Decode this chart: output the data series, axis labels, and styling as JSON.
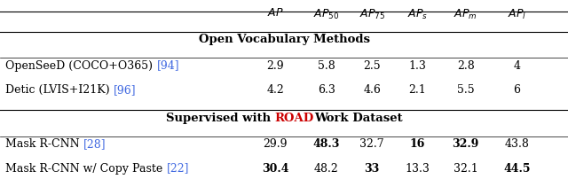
{
  "columns": [
    "AP",
    "AP50",
    "AP75",
    "AP_s",
    "AP_m",
    "AP_l"
  ],
  "col_labels": [
    "$AP$",
    "$AP_{50}$",
    "$AP_{75}$",
    "$AP_s$",
    "$AP_m$",
    "$AP_l$"
  ],
  "section1_title": "Open Vocabulary Methods",
  "section2_title": "Supervised with ROADWork Dataset",
  "rows": [
    {
      "name": "OpenSeeD (COCO+O365) [94]",
      "name_parts": [
        {
          "text": "OpenSeeD (COCO+O365) ",
          "color": "#000000",
          "bold": false
        },
        {
          "text": "[94]",
          "color": "#4169E1",
          "bold": false
        }
      ],
      "values": [
        "2.9",
        "5.8",
        "2.5",
        "1.3",
        "2.8",
        "4"
      ],
      "bold": [
        false,
        false,
        false,
        false,
        false,
        false
      ]
    },
    {
      "name": "Detic (LVIS+I21K) [96]",
      "name_parts": [
        {
          "text": "Detic (LVIS+I21K) ",
          "color": "#000000",
          "bold": false
        },
        {
          "text": "[96]",
          "color": "#4169E1",
          "bold": false
        }
      ],
      "values": [
        "4.2",
        "6.3",
        "4.6",
        "2.1",
        "5.5",
        "6"
      ],
      "bold": [
        false,
        false,
        false,
        false,
        false,
        false
      ]
    },
    {
      "name": "Mask R-CNN [28]",
      "name_parts": [
        {
          "text": "Mask R-CNN ",
          "color": "#000000",
          "bold": false
        },
        {
          "text": "[28]",
          "color": "#4169E1",
          "bold": false
        }
      ],
      "values": [
        "29.9",
        "48.3",
        "32.7",
        "16",
        "32.9",
        "43.8"
      ],
      "bold": [
        false,
        true,
        false,
        true,
        true,
        false
      ]
    },
    {
      "name": "Mask R-CNN w/ Copy Paste [22]",
      "name_parts": [
        {
          "text": "Mask R-CNN w/ Copy Paste ",
          "color": "#000000",
          "bold": false
        },
        {
          "text": "[22]",
          "color": "#4169E1",
          "bold": false
        }
      ],
      "values": [
        "30.4",
        "48.2",
        "33",
        "13.3",
        "32.1",
        "44.5"
      ],
      "bold": [
        true,
        false,
        true,
        false,
        false,
        true
      ]
    }
  ],
  "background_color": "#ffffff",
  "font_size": 9,
  "header_font_size": 9,
  "section_font_size": 9.5
}
